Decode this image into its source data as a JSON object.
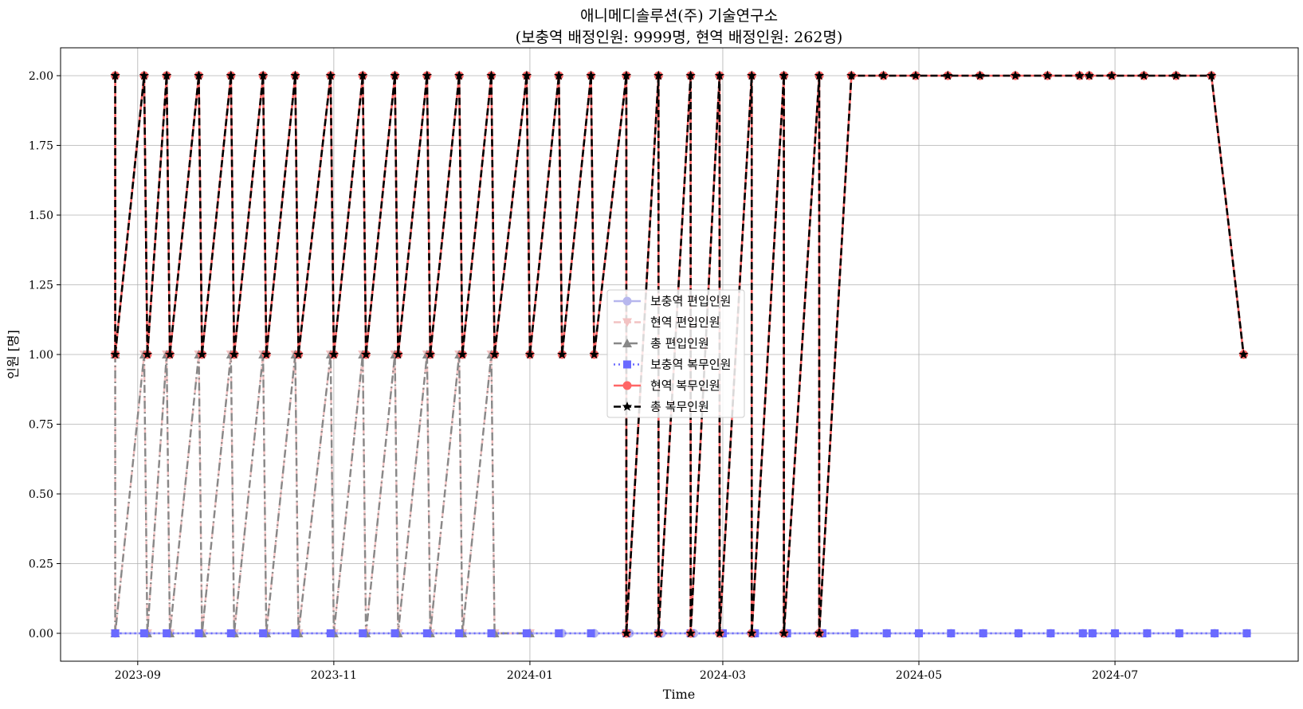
{
  "chart_data": {
    "type": "line",
    "title": "애니메디솔루션(주) 기술연구소",
    "subtitle": "(보충역 배정인원: 9999명, 현역 배정인원: 262명)",
    "xlabel": "Time",
    "ylabel": "인원 [명]",
    "ylim": [
      -0.1,
      2.1
    ],
    "xlim": [
      "2023-08-08",
      "2024-08-27"
    ],
    "yticks": [
      "0.00",
      "0.25",
      "0.50",
      "0.75",
      "1.00",
      "1.25",
      "1.50",
      "1.75",
      "2.00"
    ],
    "xticks": [
      "2023-09",
      "2023-11",
      "2024-01",
      "2024-03",
      "2024-05",
      "2024-07"
    ],
    "grid": true,
    "legend_position": "center",
    "series": [
      {
        "name": "보충역 편입인원",
        "color": "#b7b7ee",
        "marker": "circle",
        "line_style": "solid",
        "x": [
          "2023-08-25",
          "2023-09-04",
          "2023-09-11",
          "2023-09-21",
          "2023-10-01",
          "2023-10-11",
          "2023-10-21",
          "2023-11-01",
          "2023-11-11",
          "2023-11-21",
          "2023-12-01",
          "2023-12-11",
          "2023-12-21",
          "2024-01-01",
          "2024-01-11",
          "2024-01-21",
          "2024-02-01",
          "2024-02-11",
          "2024-02-21",
          "2024-03-01",
          "2024-03-11",
          "2024-03-21",
          "2024-04-01",
          "2024-04-11",
          "2024-04-21",
          "2024-05-01",
          "2024-05-11",
          "2024-05-21",
          "2024-06-01",
          "2024-06-11",
          "2024-06-21",
          "2024-06-24",
          "2024-07-01",
          "2024-07-11",
          "2024-07-21",
          "2024-08-01",
          "2024-08-11"
        ],
        "values": [
          0,
          0,
          0,
          0,
          0,
          0,
          0,
          0,
          0,
          0,
          0,
          0,
          0,
          0,
          0,
          0,
          0,
          0,
          0,
          0,
          0,
          0,
          0,
          0,
          0,
          0,
          0,
          0,
          0,
          0,
          0,
          0,
          0,
          0,
          0,
          0,
          0
        ]
      },
      {
        "name": "현역 편입인원",
        "color": "#f2c2c2",
        "marker": "triangle-down",
        "line_style": "dashed",
        "x": [
          "2023-08-25",
          "2023-08-25",
          "2023-09-03",
          "2023-09-04",
          "2023-09-10",
          "2023-09-11",
          "2023-09-20",
          "2023-09-21",
          "2023-09-30",
          "2023-10-01",
          "2023-10-10",
          "2023-10-11",
          "2023-10-20",
          "2023-10-21",
          "2023-10-31",
          "2023-11-01",
          "2023-11-10",
          "2023-11-11",
          "2023-11-20",
          "2023-11-21",
          "2023-11-30",
          "2023-12-01",
          "2023-12-10",
          "2023-12-11",
          "2023-12-20",
          "2023-12-21",
          "2024-01-01"
        ],
        "values": [
          1,
          0,
          1,
          0,
          1,
          0,
          1,
          0,
          1,
          0,
          1,
          0,
          1,
          0,
          1,
          0,
          1,
          0,
          1,
          0,
          1,
          0,
          1,
          0,
          1,
          0,
          0
        ]
      },
      {
        "name": "총 편입인원",
        "color": "#888888",
        "marker": "triangle-up",
        "line_style": "dashdot",
        "x": [
          "2023-08-25",
          "2023-08-25",
          "2023-09-03",
          "2023-09-04",
          "2023-09-10",
          "2023-09-11",
          "2023-09-20",
          "2023-09-21",
          "2023-09-30",
          "2023-10-01",
          "2023-10-10",
          "2023-10-11",
          "2023-10-20",
          "2023-10-21",
          "2023-10-31",
          "2023-11-01",
          "2023-11-10",
          "2023-11-11",
          "2023-11-20",
          "2023-11-21",
          "2023-11-30",
          "2023-12-01",
          "2023-12-10",
          "2023-12-11",
          "2023-12-20",
          "2023-12-21",
          "2024-01-01"
        ],
        "values": [
          1,
          0,
          1,
          0,
          1,
          0,
          1,
          0,
          1,
          0,
          1,
          0,
          1,
          0,
          1,
          0,
          1,
          0,
          1,
          0,
          1,
          0,
          1,
          0,
          1,
          0,
          0
        ]
      },
      {
        "name": "보충역 복무인원",
        "color": "#6a6aff",
        "marker": "square",
        "line_style": "dotted",
        "x": [
          "2023-08-25",
          "2023-09-03",
          "2023-09-10",
          "2023-09-20",
          "2023-09-30",
          "2023-10-10",
          "2023-10-20",
          "2023-10-31",
          "2023-11-10",
          "2023-11-20",
          "2023-11-30",
          "2023-12-10",
          "2023-12-20",
          "2023-12-31",
          "2024-01-10",
          "2024-01-20",
          "2024-01-31",
          "2024-02-10",
          "2024-02-20",
          "2024-03-01",
          "2024-03-11",
          "2024-03-21",
          "2024-04-01",
          "2024-04-11",
          "2024-04-21",
          "2024-05-01",
          "2024-05-11",
          "2024-05-21",
          "2024-06-01",
          "2024-06-11",
          "2024-06-21",
          "2024-06-24",
          "2024-07-01",
          "2024-07-11",
          "2024-07-21",
          "2024-08-01",
          "2024-08-11"
        ],
        "values": [
          0,
          0,
          0,
          0,
          0,
          0,
          0,
          0,
          0,
          0,
          0,
          0,
          0,
          0,
          0,
          0,
          0,
          0,
          0,
          0,
          0,
          0,
          0,
          0,
          0,
          0,
          0,
          0,
          0,
          0,
          0,
          0,
          0,
          0,
          0,
          0,
          0
        ]
      },
      {
        "name": "현역 복무인원",
        "color": "#ff6666",
        "marker": "circle",
        "line_style": "solid",
        "x": [
          "2023-08-25",
          "2023-08-25",
          "2023-09-03",
          "2023-09-04",
          "2023-09-10",
          "2023-09-11",
          "2023-09-20",
          "2023-09-21",
          "2023-09-30",
          "2023-10-01",
          "2023-10-10",
          "2023-10-11",
          "2023-10-20",
          "2023-10-21",
          "2023-10-31",
          "2023-11-01",
          "2023-11-10",
          "2023-11-11",
          "2023-11-20",
          "2023-11-21",
          "2023-11-30",
          "2023-12-01",
          "2023-12-10",
          "2023-12-11",
          "2023-12-20",
          "2023-12-21",
          "2023-12-31",
          "2024-01-01",
          "2024-01-10",
          "2024-01-11",
          "2024-01-20",
          "2024-01-21",
          "2024-01-31",
          "2024-01-31",
          "2024-02-10",
          "2024-02-10",
          "2024-02-20",
          "2024-02-20",
          "2024-02-29",
          "2024-02-29",
          "2024-03-10",
          "2024-03-10",
          "2024-03-20",
          "2024-03-20",
          "2024-03-31",
          "2024-03-31",
          "2024-04-10",
          "2024-04-20",
          "2024-04-30",
          "2024-05-10",
          "2024-05-20",
          "2024-05-31",
          "2024-06-10",
          "2024-06-20",
          "2024-06-23",
          "2024-06-30",
          "2024-07-10",
          "2024-07-20",
          "2024-07-31",
          "2024-08-10"
        ],
        "values": [
          2,
          1,
          2,
          1,
          2,
          1,
          2,
          1,
          2,
          1,
          2,
          1,
          2,
          1,
          2,
          1,
          2,
          1,
          2,
          1,
          2,
          1,
          2,
          1,
          2,
          1,
          2,
          1,
          2,
          1,
          2,
          1,
          2,
          0,
          2,
          0,
          2,
          0,
          2,
          0,
          2,
          0,
          2,
          0,
          2,
          0,
          2,
          2,
          2,
          2,
          2,
          2,
          2,
          2,
          2,
          2,
          2,
          2,
          2,
          1
        ]
      },
      {
        "name": "총 복무인원",
        "color": "#000000",
        "marker": "star",
        "line_style": "dashed",
        "x": [
          "2023-08-25",
          "2023-08-25",
          "2023-09-03",
          "2023-09-04",
          "2023-09-10",
          "2023-09-11",
          "2023-09-20",
          "2023-09-21",
          "2023-09-30",
          "2023-10-01",
          "2023-10-10",
          "2023-10-11",
          "2023-10-20",
          "2023-10-21",
          "2023-10-31",
          "2023-11-01",
          "2023-11-10",
          "2023-11-11",
          "2023-11-20",
          "2023-11-21",
          "2023-11-30",
          "2023-12-01",
          "2023-12-10",
          "2023-12-11",
          "2023-12-20",
          "2023-12-21",
          "2023-12-31",
          "2024-01-01",
          "2024-01-10",
          "2024-01-11",
          "2024-01-20",
          "2024-01-21",
          "2024-01-31",
          "2024-01-31",
          "2024-02-10",
          "2024-02-10",
          "2024-02-20",
          "2024-02-20",
          "2024-02-29",
          "2024-02-29",
          "2024-03-10",
          "2024-03-10",
          "2024-03-20",
          "2024-03-20",
          "2024-03-31",
          "2024-03-31",
          "2024-04-10",
          "2024-04-20",
          "2024-04-30",
          "2024-05-10",
          "2024-05-20",
          "2024-05-31",
          "2024-06-10",
          "2024-06-20",
          "2024-06-23",
          "2024-06-30",
          "2024-07-10",
          "2024-07-20",
          "2024-07-31",
          "2024-08-10"
        ],
        "values": [
          2,
          1,
          2,
          1,
          2,
          1,
          2,
          1,
          2,
          1,
          2,
          1,
          2,
          1,
          2,
          1,
          2,
          1,
          2,
          1,
          2,
          1,
          2,
          1,
          2,
          1,
          2,
          1,
          2,
          1,
          2,
          1,
          2,
          0,
          2,
          0,
          2,
          0,
          2,
          0,
          2,
          0,
          2,
          0,
          2,
          0,
          2,
          2,
          2,
          2,
          2,
          2,
          2,
          2,
          2,
          2,
          2,
          2,
          2,
          1
        ]
      }
    ]
  }
}
